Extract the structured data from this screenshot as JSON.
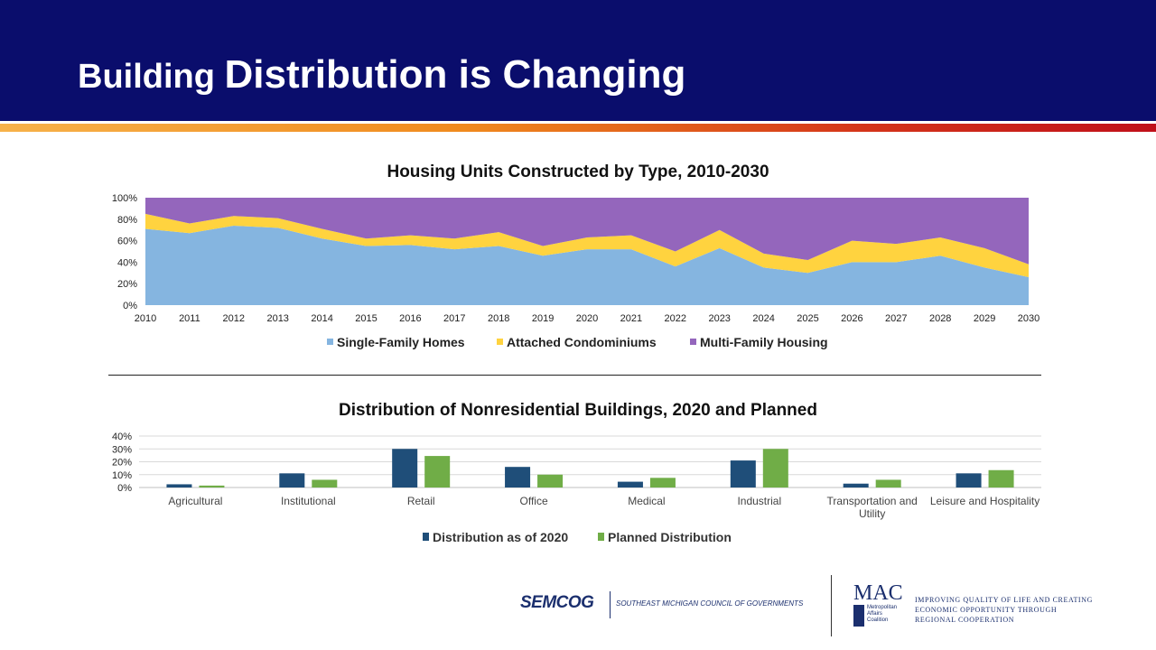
{
  "slide": {
    "title_part1": "Building ",
    "title_part2": "Distribution is Changing"
  },
  "chart_data": [
    {
      "type": "area",
      "stacked": "percent",
      "title": "Housing Units Constructed by Type, 2010-2030",
      "x": [
        "2010",
        "2011",
        "2012",
        "2013",
        "2014",
        "2015",
        "2016",
        "2017",
        "2018",
        "2019",
        "2020",
        "2021",
        "2022",
        "2023",
        "2024",
        "2025",
        "2026",
        "2027",
        "2028",
        "2029",
        "2030"
      ],
      "y_ticks": [
        "0%",
        "20%",
        "40%",
        "60%",
        "80%",
        "100%"
      ],
      "ylim": [
        0,
        100
      ],
      "legend_position": "bottom",
      "series": [
        {
          "name": "Single-Family Homes",
          "color": "#85b5e0",
          "values": [
            71,
            67,
            74,
            72,
            62,
            55,
            56,
            52,
            55,
            46,
            52,
            52,
            36,
            53,
            35,
            30,
            40,
            40,
            46,
            35,
            26
          ]
        },
        {
          "name": "Attached Condominiums",
          "color": "#ffd33f",
          "values": [
            14,
            9,
            9,
            9,
            9,
            7,
            9,
            10,
            13,
            9,
            11,
            13,
            14,
            17,
            13,
            12,
            20,
            17,
            17,
            18,
            12
          ]
        },
        {
          "name": "Multi-Family Housing",
          "color": "#9466bc",
          "values": [
            15,
            24,
            17,
            19,
            29,
            38,
            35,
            38,
            32,
            45,
            37,
            35,
            50,
            30,
            52,
            58,
            40,
            43,
            37,
            47,
            62
          ]
        }
      ]
    },
    {
      "type": "bar",
      "title": "Distribution of Nonresidential Buildings, 2020 and Planned",
      "categories": [
        "Agricultural",
        "Institutional",
        "Retail",
        "Office",
        "Medical",
        "Industrial",
        "Transportation and Utility",
        "Leisure and Hospitality"
      ],
      "category_lines": [
        [
          "Agricultural"
        ],
        [
          "Institutional"
        ],
        [
          "Retail"
        ],
        [
          "Office"
        ],
        [
          "Medical"
        ],
        [
          "Industrial"
        ],
        [
          "Transportation and",
          "Utility"
        ],
        [
          "Leisure and Hospitality"
        ]
      ],
      "y_ticks": [
        "0%",
        "10%",
        "20%",
        "30%",
        "40%"
      ],
      "ylim": [
        0,
        40
      ],
      "legend_position": "bottom",
      "series": [
        {
          "name": "Distribution as of 2020",
          "color": "#1f4e79",
          "values": [
            2.5,
            11,
            30,
            16,
            4.5,
            21,
            3,
            11
          ]
        },
        {
          "name": "Planned Distribution",
          "color": "#70ad47",
          "values": [
            1.5,
            6,
            24.5,
            10,
            7.5,
            30,
            6,
            13.5
          ]
        }
      ]
    }
  ],
  "footer": {
    "semcog": "SEMCOG",
    "semcog_sub": "SOUTHEAST MICHIGAN COUNCIL OF GOVERNMENTS",
    "mac": "MAC",
    "mac_small": [
      "Metropolitan",
      "Affairs",
      "Coalition"
    ],
    "mac_slogan": [
      "Improving quality of life and creating",
      "economic opportunity through",
      "regional cooperation"
    ]
  }
}
